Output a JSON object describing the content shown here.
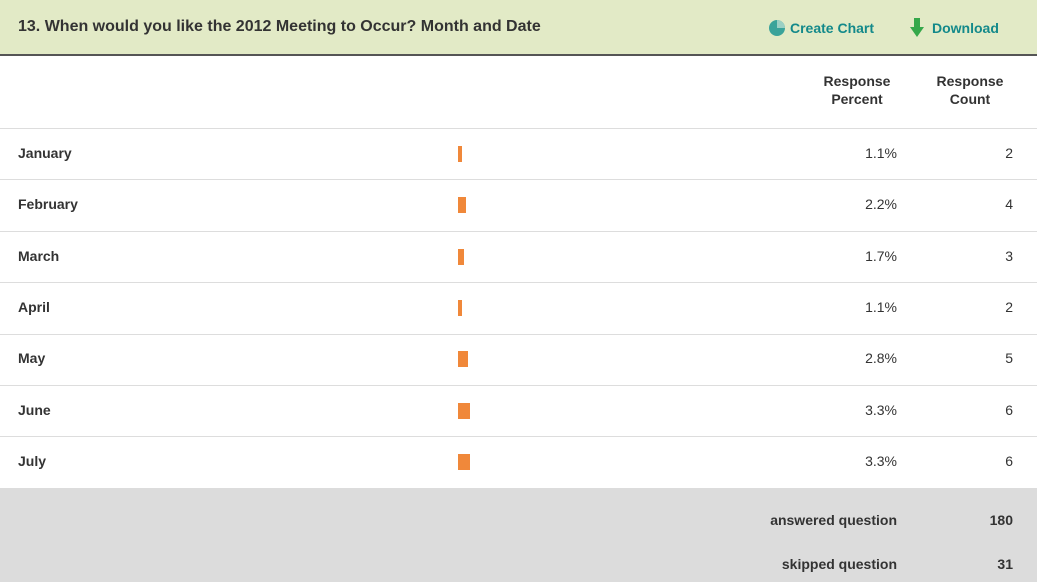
{
  "header": {
    "title": "13. When would you like the 2012 Meeting to Occur? Month and Date",
    "actions": [
      "Create Chart",
      "Download"
    ]
  },
  "columns": [
    "Response Percent",
    "Response Count"
  ],
  "scale": {
    "max_percent": 100
  },
  "rows": [
    {
      "label": "January",
      "percent": 1.1,
      "percent_label": "1.1%",
      "count": 2
    },
    {
      "label": "February",
      "percent": 2.2,
      "percent_label": "2.2%",
      "count": 4
    },
    {
      "label": "March",
      "percent": 1.7,
      "percent_label": "1.7%",
      "count": 3
    },
    {
      "label": "April",
      "percent": 1.1,
      "percent_label": "1.1%",
      "count": 2
    },
    {
      "label": "May",
      "percent": 2.8,
      "percent_label": "2.8%",
      "count": 5
    },
    {
      "label": "June",
      "percent": 3.3,
      "percent_label": "3.3%",
      "count": 6
    },
    {
      "label": "July",
      "percent": 3.3,
      "percent_label": "3.3%",
      "count": 6
    }
  ],
  "footer": [
    {
      "label": "answered question",
      "value": 180
    },
    {
      "label": "skipped question",
      "value": 31
    }
  ]
}
